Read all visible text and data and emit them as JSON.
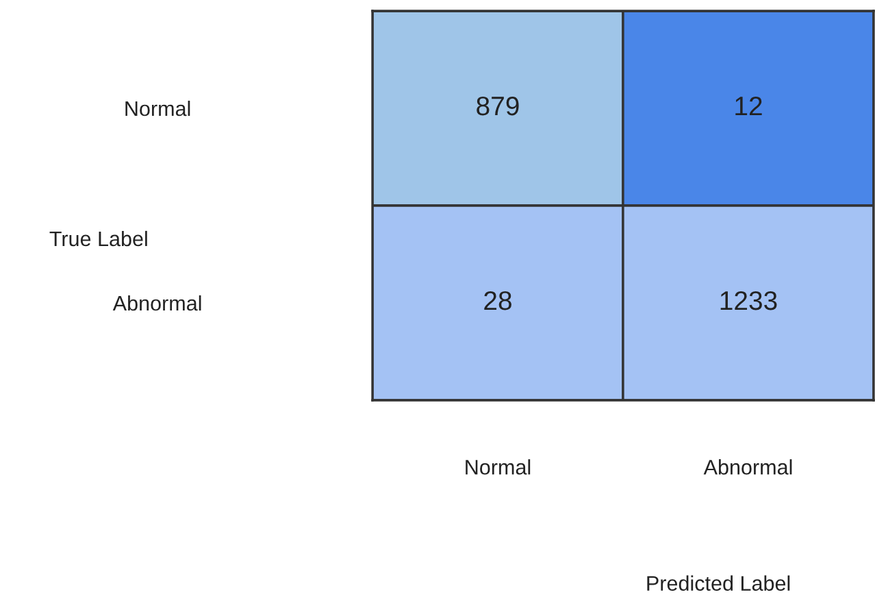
{
  "chart_data": {
    "type": "heatmap",
    "xlabel": "Predicted Label",
    "ylabel": "True Label",
    "categories": [
      "Normal",
      "Abnormal"
    ],
    "y_categories": [
      "Normal",
      "Abnormal"
    ],
    "cells": [
      [
        879,
        12
      ],
      [
        28,
        1233
      ]
    ],
    "colors": [
      [
        "#9fc5e8",
        "#4a86e8"
      ],
      [
        "#a4c2f4",
        "#a4c2f4"
      ]
    ],
    "data_labels": true
  }
}
